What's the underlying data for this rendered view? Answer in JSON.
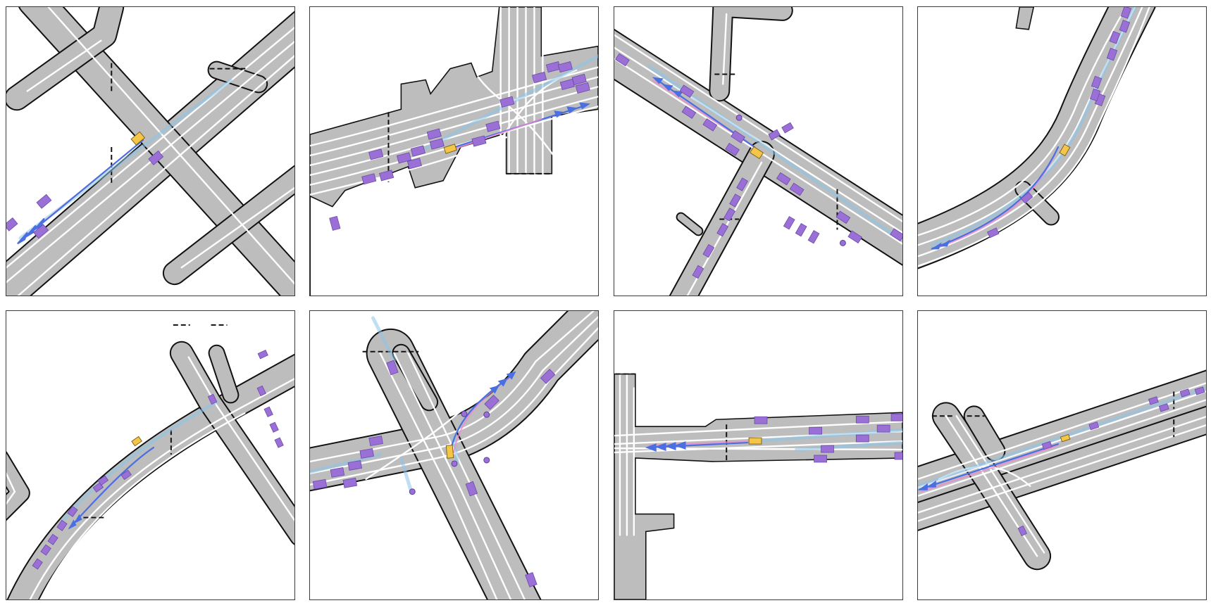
{
  "figure": {
    "description_hidden": "",
    "panel_count": 8,
    "colors": {
      "background": "#ffffff",
      "road": "#bdbdbd",
      "road_edge": "#111111",
      "lane_marking": "#ffffff",
      "agent": "#9a6fd6",
      "ego_vehicle": "#f3c64a",
      "history_trail": "#8ec4e8",
      "predicted_trajectory": "#4a6fe0",
      "alternate_trajectory": "#f08bd0"
    },
    "panels": [
      {
        "id": 1,
        "scene": "diagonal-intersection"
      },
      {
        "id": 2,
        "scene": "multilane-t-junction"
      },
      {
        "id": 3,
        "scene": "diagonal-arterial-crossing"
      },
      {
        "id": 4,
        "scene": "curved-highway"
      },
      {
        "id": 5,
        "scene": "curved-road-with-junction"
      },
      {
        "id": 6,
        "scene": "y-intersection-turn"
      },
      {
        "id": 7,
        "scene": "horizontal-road-t-junction"
      },
      {
        "id": 8,
        "scene": "oblique-multilane-road"
      }
    ]
  }
}
